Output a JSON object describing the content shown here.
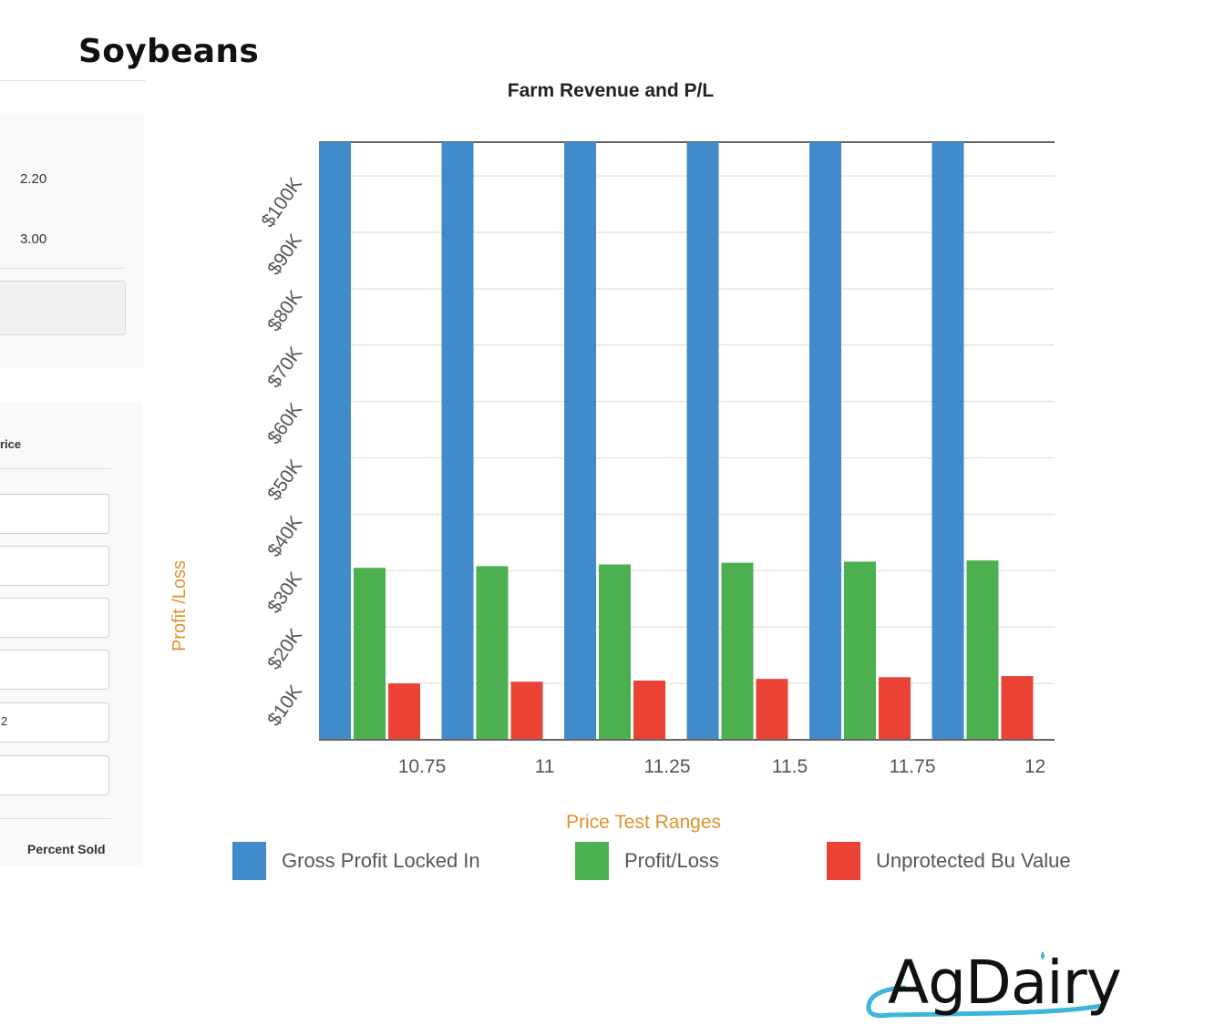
{
  "page": {
    "title": "Soybeans"
  },
  "left_panel": {
    "values": [
      "2.20",
      "3.00"
    ],
    "price_label_fragment": "rice",
    "input_fragment": "2",
    "percent_sold_label": "Percent Sold"
  },
  "chart_data": {
    "type": "bar",
    "title": "Farm Revenue and P/L",
    "xlabel": "Price Test Ranges",
    "ylabel": "Profit /Loss",
    "categories": [
      "10.75",
      "11",
      "11.25",
      "11.5",
      "11.75",
      "12"
    ],
    "yticks": [
      "$10K",
      "$20K",
      "$30K",
      "$40K",
      "$50K",
      "$60K",
      "$70K",
      "$80K",
      "$90K",
      "$100K"
    ],
    "ylim": [
      0,
      106000
    ],
    "grid": true,
    "legend": "bottom",
    "series": [
      {
        "name": "Gross Profit Locked In",
        "color": "#428bcb",
        "values": [
          106000,
          106000,
          106000,
          106000,
          106000,
          106000
        ]
      },
      {
        "name": "Profit/Loss",
        "color": "#4caf50",
        "values": [
          30500,
          30800,
          31100,
          31400,
          31600,
          31800
        ]
      },
      {
        "name": "Unprotected Bu Value",
        "color": "#ea4335",
        "values": [
          10000,
          10300,
          10500,
          10800,
          11100,
          11300
        ]
      }
    ]
  },
  "logo": {
    "text": "AgDairy"
  }
}
